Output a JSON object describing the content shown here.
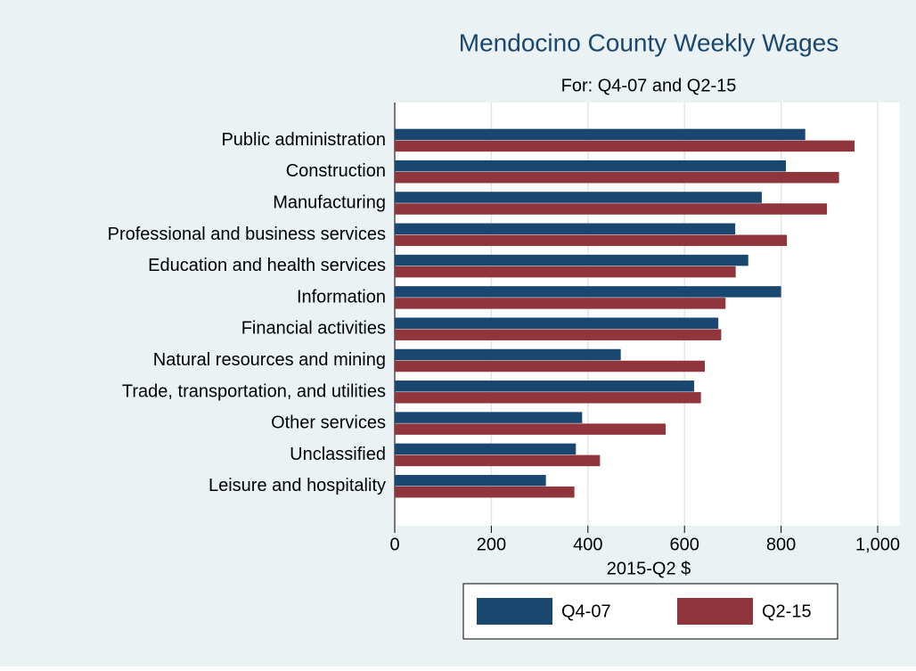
{
  "chart_data": {
    "type": "bar",
    "orientation": "horizontal",
    "title": "Mendocino County Weekly Wages",
    "subtitle": "For: Q4-07 and Q2-15",
    "x_label": "2015-Q2 $",
    "categories": [
      "Public administration",
      "Construction",
      "Manufacturing",
      "Professional and business services",
      "Education and health services",
      "Information",
      "Financial activities",
      "Natural resources and mining",
      "Trade, transportation, and utilities",
      "Other services",
      "Unclassified",
      "Leisure and hospitality"
    ],
    "series": [
      {
        "name": "Q4-07",
        "color": "#1a476f",
        "values": [
          850,
          810,
          760,
          705,
          732,
          800,
          670,
          468,
          620,
          388,
          375,
          313
        ]
      },
      {
        "name": "Q2-15",
        "color": "#90353b",
        "values": [
          952,
          920,
          895,
          812,
          706,
          685,
          676,
          642,
          634,
          561,
          425,
          372
        ]
      }
    ],
    "xlim": [
      0,
      1050
    ],
    "xticks": [
      0,
      200,
      400,
      600,
      800,
      {
        "value": 1000,
        "label": "1,000"
      }
    ],
    "grid": true,
    "legend": "bottom"
  }
}
